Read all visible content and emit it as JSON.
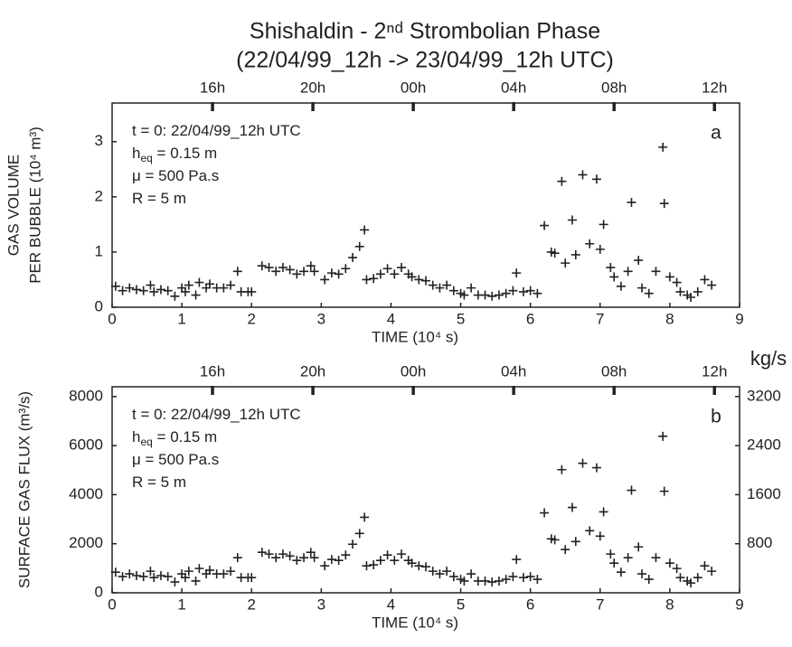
{
  "chart_data": [
    {
      "type": "scatter",
      "title": "Shishaldin - 2ⁿᵈ Strombolian Phase",
      "subtitle": "(22/04/99_12h -> 23/04/99_12h UTC)",
      "x_label": "TIME (10⁴ s)",
      "y_label": [
        "GAS VOLUME",
        "PER BUBBLE (10⁴ m³)"
      ],
      "panel_label": "a",
      "annotations": [
        {
          "text": "t = 0: 22/04/99_12h UTC"
        },
        {
          "symbol": "h",
          "subscript": "eq",
          "text": " = 0.15 m"
        },
        {
          "text": "μ = 500 Pa.s"
        },
        {
          "text": "R = 5 m"
        }
      ],
      "xlim": [
        0,
        9
      ],
      "xticks": [
        0,
        1,
        2,
        3,
        4,
        5,
        6,
        7,
        8,
        9
      ],
      "ylim": [
        0,
        3.7
      ],
      "yticks": [
        0,
        1,
        2,
        3
      ],
      "top_ticks": [
        {
          "value": 1.44,
          "label": "16h"
        },
        {
          "value": 2.88,
          "label": "20h"
        },
        {
          "value": 4.32,
          "label": "00h"
        },
        {
          "value": 5.76,
          "label": "04h"
        },
        {
          "value": 7.2,
          "label": "08h"
        },
        {
          "value": 8.64,
          "label": "12h"
        }
      ],
      "color": "#222222",
      "x": [
        0.05,
        0.15,
        0.25,
        0.35,
        0.45,
        0.55,
        0.6,
        0.7,
        0.8,
        0.9,
        1.0,
        1.05,
        1.1,
        1.2,
        1.25,
        1.35,
        1.4,
        1.5,
        1.6,
        1.7,
        1.8,
        1.85,
        1.95,
        2.0,
        2.15,
        2.25,
        2.35,
        2.45,
        2.55,
        2.65,
        2.75,
        2.85,
        2.9,
        3.05,
        3.15,
        3.25,
        3.35,
        3.45,
        3.55,
        3.62,
        3.65,
        3.75,
        3.85,
        3.95,
        4.05,
        4.15,
        4.25,
        4.3,
        4.4,
        4.5,
        4.6,
        4.7,
        4.8,
        4.9,
        5.0,
        5.05,
        5.15,
        5.25,
        5.35,
        5.45,
        5.55,
        5.65,
        5.75,
        5.8,
        5.9,
        6.0,
        6.1,
        6.2,
        6.3,
        6.35,
        6.45,
        6.5,
        6.6,
        6.65,
        6.75,
        6.85,
        6.95,
        7.0,
        7.05,
        7.15,
        7.2,
        7.3,
        7.4,
        7.45,
        7.55,
        7.6,
        7.7,
        7.8,
        7.9,
        7.92,
        8.0,
        8.1,
        8.15,
        8.25,
        8.3,
        8.4,
        8.5,
        8.6
      ],
      "values": [
        0.38,
        0.3,
        0.35,
        0.32,
        0.3,
        0.4,
        0.28,
        0.32,
        0.3,
        0.2,
        0.35,
        0.28,
        0.4,
        0.22,
        0.45,
        0.35,
        0.42,
        0.35,
        0.35,
        0.4,
        0.65,
        0.28,
        0.28,
        0.28,
        0.75,
        0.72,
        0.65,
        0.72,
        0.68,
        0.6,
        0.65,
        0.75,
        0.65,
        0.5,
        0.62,
        0.6,
        0.7,
        0.9,
        1.1,
        1.4,
        0.5,
        0.52,
        0.6,
        0.7,
        0.6,
        0.72,
        0.6,
        0.55,
        0.5,
        0.48,
        0.4,
        0.35,
        0.4,
        0.3,
        0.25,
        0.22,
        0.35,
        0.22,
        0.22,
        0.2,
        0.22,
        0.25,
        0.3,
        0.62,
        0.28,
        0.3,
        0.25,
        1.48,
        1.0,
        0.98,
        2.28,
        0.8,
        1.58,
        0.95,
        2.4,
        1.15,
        2.32,
        1.05,
        1.5,
        0.72,
        0.55,
        0.38,
        0.65,
        1.9,
        0.85,
        0.35,
        0.25,
        0.65,
        2.9,
        1.88,
        0.55,
        0.45,
        0.28,
        0.22,
        0.18,
        0.28,
        0.5,
        0.4
      ]
    },
    {
      "type": "scatter",
      "x_label": "TIME (10⁴ s)",
      "y_label": [
        "SURFACE GAS FLUX (m³/s)"
      ],
      "y2_label": "kg/s",
      "panel_label": "b",
      "annotations": [
        {
          "text": "t = 0: 22/04/99_12h UTC"
        },
        {
          "symbol": "h",
          "subscript": "eq",
          "text": " = 0.15 m"
        },
        {
          "text": "μ = 500 Pa.s"
        },
        {
          "text": "R = 5 m"
        }
      ],
      "xlim": [
        0,
        9
      ],
      "xticks": [
        0,
        1,
        2,
        3,
        4,
        5,
        6,
        7,
        8,
        9
      ],
      "ylim": [
        0,
        8400
      ],
      "yticks": [
        0,
        2000,
        4000,
        6000,
        8000
      ],
      "y2lim": [
        0,
        3360
      ],
      "y2ticks": [
        800,
        1600,
        2400,
        3200
      ],
      "top_ticks": [
        {
          "value": 1.44,
          "label": "16h"
        },
        {
          "value": 2.88,
          "label": "20h"
        },
        {
          "value": 4.32,
          "label": "00h"
        },
        {
          "value": 5.76,
          "label": "04h"
        },
        {
          "value": 7.2,
          "label": "08h"
        },
        {
          "value": 8.64,
          "label": "12h"
        }
      ],
      "color": "#222222",
      "x": [
        0.05,
        0.15,
        0.25,
        0.35,
        0.45,
        0.55,
        0.6,
        0.7,
        0.8,
        0.9,
        1.0,
        1.05,
        1.1,
        1.2,
        1.25,
        1.35,
        1.4,
        1.5,
        1.6,
        1.7,
        1.8,
        1.85,
        1.95,
        2.0,
        2.15,
        2.25,
        2.35,
        2.45,
        2.55,
        2.65,
        2.75,
        2.85,
        2.9,
        3.05,
        3.15,
        3.25,
        3.35,
        3.45,
        3.55,
        3.62,
        3.65,
        3.75,
        3.85,
        3.95,
        4.05,
        4.15,
        4.25,
        4.3,
        4.4,
        4.5,
        4.6,
        4.7,
        4.8,
        4.9,
        5.0,
        5.05,
        5.15,
        5.25,
        5.35,
        5.45,
        5.55,
        5.65,
        5.75,
        5.8,
        5.9,
        6.0,
        6.1,
        6.2,
        6.3,
        6.35,
        6.45,
        6.5,
        6.6,
        6.65,
        6.75,
        6.85,
        6.95,
        7.0,
        7.05,
        7.15,
        7.2,
        7.3,
        7.4,
        7.45,
        7.55,
        7.6,
        7.7,
        7.8,
        7.9,
        7.92,
        8.0,
        8.1,
        8.15,
        8.25,
        8.3,
        8.4,
        8.5,
        8.6
      ],
      "values": [
        840,
        660,
        770,
        700,
        660,
        880,
        620,
        700,
        660,
        440,
        770,
        620,
        880,
        480,
        990,
        770,
        920,
        770,
        770,
        880,
        1430,
        620,
        620,
        620,
        1650,
        1580,
        1430,
        1580,
        1500,
        1320,
        1430,
        1650,
        1430,
        1100,
        1360,
        1320,
        1540,
        1980,
        2420,
        3080,
        1100,
        1140,
        1320,
        1540,
        1320,
        1580,
        1320,
        1210,
        1100,
        1060,
        880,
        770,
        880,
        660,
        550,
        480,
        770,
        480,
        480,
        440,
        480,
        550,
        660,
        1360,
        620,
        660,
        550,
        3260,
        2200,
        2160,
        5020,
        1760,
        3480,
        2090,
        5280,
        2530,
        5100,
        2310,
        3300,
        1580,
        1210,
        840,
        1430,
        4180,
        1870,
        770,
        550,
        1430,
        6380,
        4140,
        1210,
        990,
        620,
        480,
        400,
        620,
        1100,
        880
      ]
    }
  ]
}
